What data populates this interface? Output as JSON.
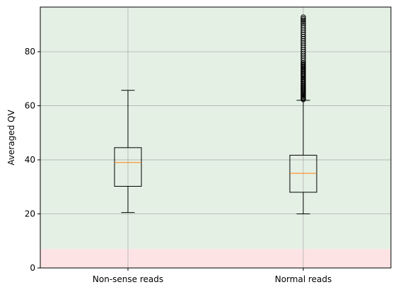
{
  "chart_data": {
    "type": "box",
    "title": "",
    "xlabel": "",
    "ylabel": "Averaged QV",
    "categories": [
      "Non-sense reads",
      "Normal reads"
    ],
    "ylim": [
      0,
      96.5
    ],
    "yticks": [
      0,
      20,
      40,
      60,
      80
    ],
    "grid": true,
    "background_bands": [
      {
        "from": 0,
        "to": 7,
        "color": "#fde3e3"
      },
      {
        "from": 7,
        "to": 96.5,
        "color": "#e4f0e4"
      }
    ],
    "boxes": [
      {
        "name": "Non-sense reads",
        "whisker_low": 20.5,
        "q1": 30.2,
        "median": 39.0,
        "q3": 44.5,
        "whisker_high": 65.7,
        "outliers": []
      },
      {
        "name": "Normal reads",
        "whisker_low": 20.0,
        "q1": 28.0,
        "median": 35.0,
        "q3": 41.7,
        "whisker_high": 62.0,
        "outliers": [
          62.3,
          62.7,
          63.0,
          63.4,
          63.8,
          64.1,
          64.5,
          64.9,
          65.3,
          65.7,
          66.1,
          66.5,
          66.9,
          67.3,
          67.7,
          68.1,
          68.5,
          68.9,
          69.3,
          69.7,
          70.1,
          70.6,
          71.0,
          71.4,
          71.8,
          72.2,
          72.6,
          73.0,
          73.4,
          73.8,
          74.3,
          74.7,
          75.1,
          75.5,
          76.0,
          76.8,
          77.6,
          78.4,
          79.2,
          80.0,
          80.8,
          81.6,
          82.4,
          83.2,
          84.0,
          84.8,
          85.6,
          86.4,
          87.2,
          88.0,
          88.8,
          89.6,
          90.4,
          91.0,
          91.6,
          92.2,
          92.8
        ]
      }
    ],
    "colors": {
      "box": "#000000",
      "median": "#ff7f0e",
      "grid": "#b0b0b0"
    }
  }
}
